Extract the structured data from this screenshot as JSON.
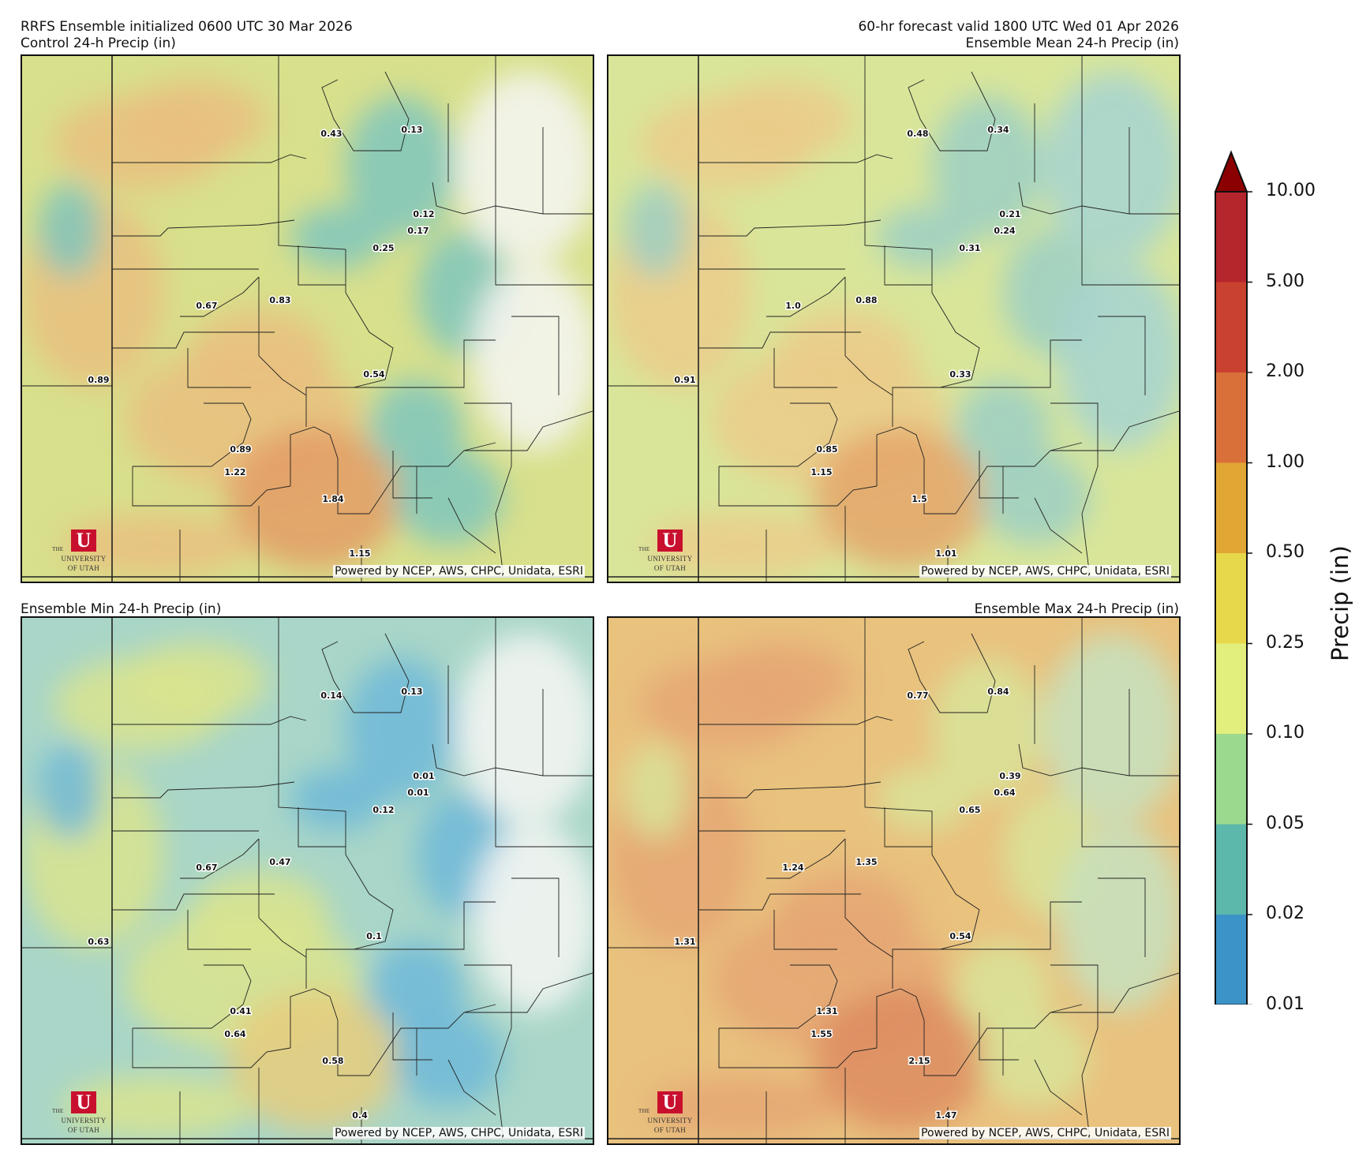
{
  "header": {
    "top_left_line1": "RRFS Ensemble initialized 0600 UTC 30 Mar 2026",
    "top_right_line1": "60-hr forecast valid 1800 UTC Wed 01 Apr 2026"
  },
  "panels": [
    {
      "title": "Control 24-h Precip (in)",
      "title_align": "left",
      "base_color": "#d8e08c",
      "stations": [
        "0.43",
        "0.13",
        "0.12",
        "0.17",
        "0.25",
        "0.67",
        "0.83",
        "0.89",
        "0.54",
        "0.89",
        "1.22",
        "1.84",
        "1.15"
      ]
    },
    {
      "title": "Ensemble Mean 24-h Precip (in)",
      "title_align": "right",
      "base_color": "#d9e69a",
      "stations": [
        "0.48",
        "0.34",
        "0.21",
        "0.24",
        "0.31",
        "1.0",
        "0.88",
        "0.91",
        "0.33",
        "0.85",
        "1.15",
        "1.5",
        "1.01"
      ]
    },
    {
      "title": "Ensemble Min 24-h Precip (in)",
      "title_align": "left",
      "base_color": "#a9d6c8",
      "stations": [
        "0.14",
        "0.13",
        "0.01",
        "0.01",
        "0.12",
        "0.67",
        "0.47",
        "0.63",
        "0.1",
        "0.41",
        "0.64",
        "0.58",
        "0.4"
      ]
    },
    {
      "title": "Ensemble Max 24-h Precip (in)",
      "title_align": "right",
      "base_color": "#e9c27e",
      "stations": [
        "0.77",
        "0.84",
        "0.39",
        "0.64",
        "0.65",
        "1.24",
        "1.35",
        "1.31",
        "0.54",
        "1.31",
        "1.55",
        "2.15",
        "1.47"
      ]
    }
  ],
  "logo": {
    "letter": "U",
    "line1": "THE",
    "line2": "UNIVERSITY",
    "line3": "OF UTAH"
  },
  "credit": "Powered by NCEP, AWS, CHPC, Unidata, ESRI",
  "colorbar": {
    "title": "Precip (in)",
    "levels": [
      "10.00",
      "5.00",
      "2.00",
      "1.00",
      "0.50",
      "0.25",
      "0.10",
      "0.05",
      "0.02",
      "0.01"
    ],
    "colors": [
      "#b5252c",
      "#c9412f",
      "#d9703a",
      "#e2a635",
      "#e6d84a",
      "#e3ef7c",
      "#9bd98e",
      "#5cb8aa",
      "#3b93c7"
    ],
    "extend_color": "#8b0000"
  }
}
